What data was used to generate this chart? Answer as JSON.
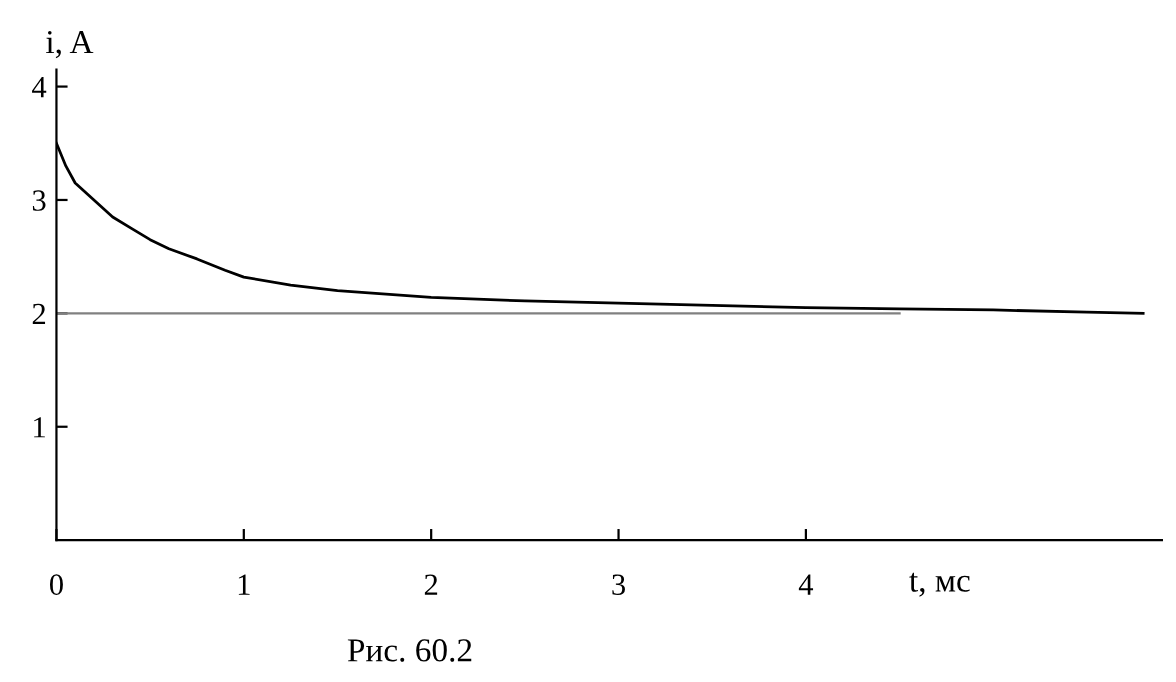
{
  "chart_data": {
    "type": "line",
    "xlabel": "t, мс",
    "ylabel": "i, A",
    "annotations": [
      "Рис. 60.2"
    ],
    "series": [
      {
        "x": [
          0,
          0.05,
          0.1,
          0.2,
          0.3,
          0.4,
          0.5,
          0.6,
          0.75,
          0.9,
          1,
          1.25,
          1.5,
          2,
          2.5,
          3,
          3.5,
          4,
          4.5,
          5,
          5.5,
          5.8
        ],
        "values": [
          3.5,
          3.3,
          3.15,
          3.0,
          2.85,
          2.75,
          2.65,
          2.57,
          2.48,
          2.38,
          2.32,
          2.25,
          2.2,
          2.14,
          2.11,
          2.09,
          2.07,
          2.05,
          2.04,
          2.03,
          2.01,
          2.0
        ],
        "color": "#000000"
      },
      {
        "x": [
          0,
          4.5
        ],
        "values": [
          2,
          2
        ],
        "color": "#808080"
      }
    ],
    "xlim": [
      0,
      5.9
    ],
    "ylim": [
      0,
      4.15
    ],
    "xticks": [
      0,
      1,
      2,
      3,
      4
    ],
    "yticks": [
      1,
      2,
      3,
      4
    ],
    "grid": false,
    "legend": false,
    "marker": "none",
    "line_style": "solid"
  }
}
